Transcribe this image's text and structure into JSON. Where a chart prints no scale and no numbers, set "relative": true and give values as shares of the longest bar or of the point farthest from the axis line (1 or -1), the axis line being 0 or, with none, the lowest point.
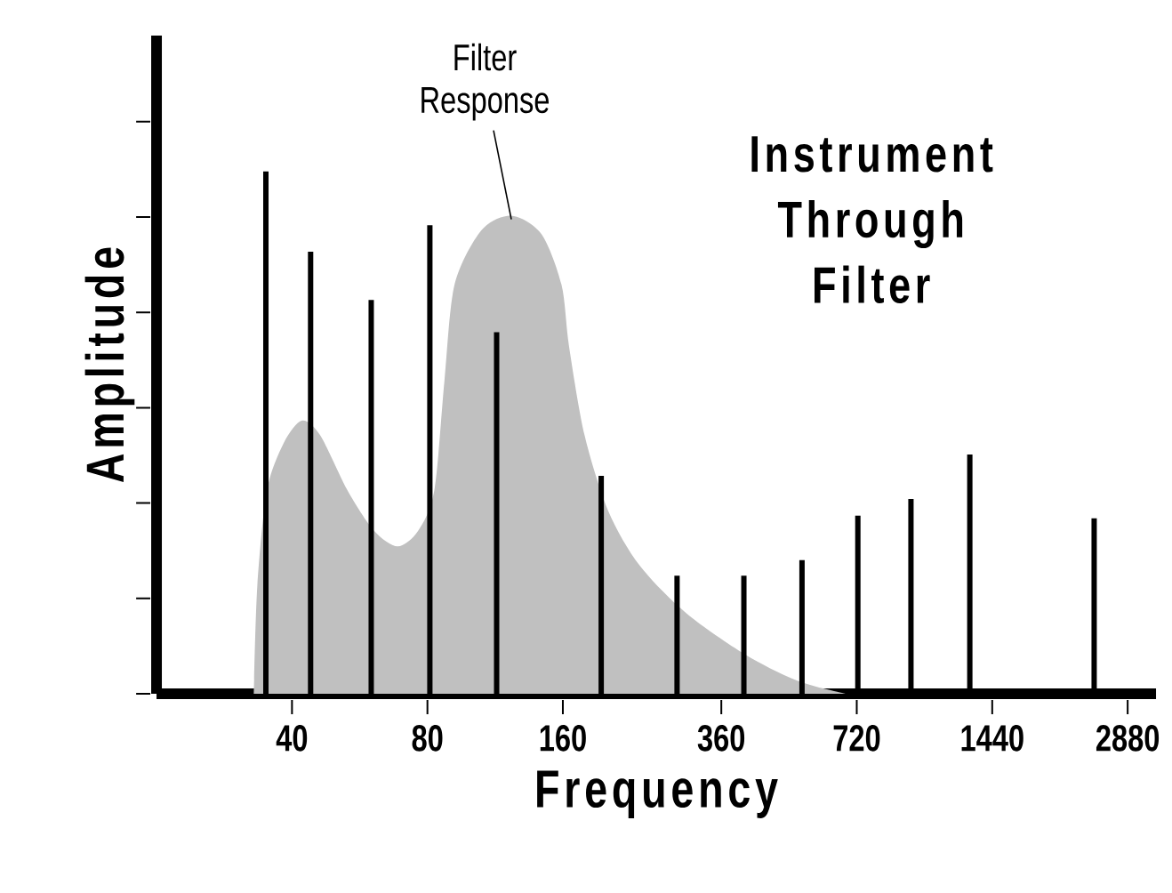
{
  "chart_data": {
    "type": "bar",
    "title": "Instrument Through Filter",
    "xlabel": "Frequency",
    "ylabel": "Amplitude",
    "relative": true,
    "log": "x",
    "tick_labels": "x",
    "xlim": [
      20,
      3330
    ],
    "xticks": [
      40,
      80,
      160,
      360,
      720,
      1440,
      2880
    ],
    "annotations": [
      {
        "text": "Filter Response",
        "x": 122.9,
        "y": 0.915
      }
    ],
    "series": [
      {
        "type": "area",
        "color": "#c0c0c0",
        "x": [
          32.9,
          33.5,
          35.2,
          38.4,
          42.1,
          46.2,
          53.1,
          60.9,
          68.7,
          76.3,
          82.9,
          87.3,
          91.9,
          105.4,
          122.9,
          143.4,
          158.9,
          165.2,
          178.9,
          201.8,
          236.8,
          301,
          407,
          534,
          679
        ],
        "values": [
          0,
          0.207,
          0.39,
          0.481,
          0.523,
          0.495,
          0.39,
          0.312,
          0.282,
          0.312,
          0.39,
          0.6,
          0.783,
          0.887,
          0.915,
          0.88,
          0.783,
          0.664,
          0.494,
          0.35,
          0.246,
          0.154,
          0.075,
          0.024,
          0
        ]
      },
      {
        "color": "#000000",
        "x": [
          35,
          44,
          60,
          81,
          114,
          194.7,
          287,
          404,
          544,
          724,
          950,
          1284,
          2426
        ],
        "values": [
          1,
          0.846,
          0.754,
          0.897,
          0.692,
          0.417,
          0.226,
          0.226,
          0.256,
          0.341,
          0.373,
          0.458,
          0.336
        ]
      }
    ]
  }
}
